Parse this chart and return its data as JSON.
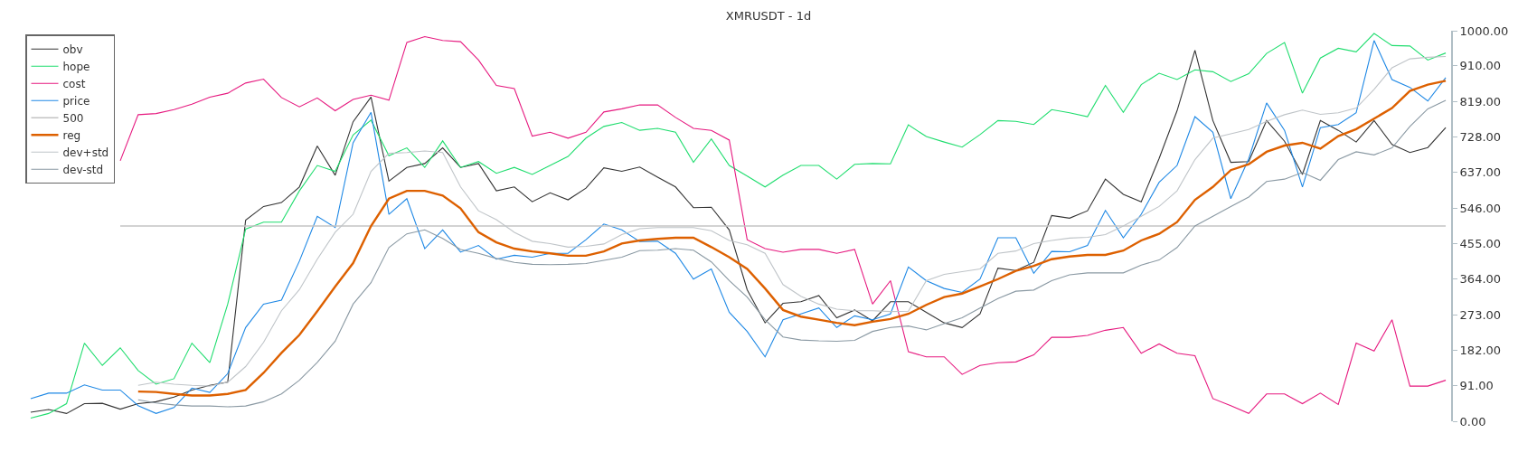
{
  "chart_data": {
    "type": "line",
    "title": "XMRUSDT - 1d",
    "categories": [
      null,
      null,
      null,
      null,
      null,
      null,
      null,
      null,
      null,
      null,
      null,
      null,
      null,
      null,
      null,
      null,
      null,
      null,
      null,
      null,
      null,
      null,
      null,
      null,
      null,
      null,
      null,
      null,
      null,
      null,
      null,
      null,
      null,
      null,
      null,
      null,
      null,
      null,
      null,
      null,
      null,
      null,
      null,
      null,
      null,
      null,
      null,
      null,
      null,
      null,
      null,
      null,
      null,
      null,
      null,
      null,
      null,
      null,
      null,
      null,
      null,
      null,
      null,
      null,
      null,
      null,
      null,
      null,
      null,
      null,
      null,
      null,
      null,
      null,
      null,
      null,
      null,
      null,
      null,
      null
    ],
    "series": [
      {
        "name": "obv",
        "color": "#333333",
        "values": [
          23,
          30,
          20,
          45,
          46,
          31,
          45,
          50,
          62,
          80,
          92,
          100,
          515,
          550,
          560,
          600,
          705,
          630,
          767,
          830,
          615,
          650,
          660,
          700,
          650,
          660,
          590,
          600,
          562,
          585,
          567,
          597,
          649,
          640,
          651,
          625,
          600,
          547,
          548,
          490,
          337,
          252,
          302,
          306,
          322,
          265,
          285,
          257,
          306,
          306,
          279,
          252,
          240,
          275,
          392,
          386,
          407,
          527,
          520,
          539,
          620,
          581,
          562,
          673,
          795,
          950,
          770,
          663,
          665,
          770,
          717,
          632,
          770,
          745,
          715,
          770,
          709,
          688,
          701,
          752
        ]
      },
      {
        "name": "hope",
        "color": "#1fdd6e",
        "values": [
          8,
          20,
          45,
          200,
          143,
          188,
          130,
          95,
          109,
          200,
          150,
          300,
          492,
          510,
          510,
          590,
          655,
          640,
          733,
          771,
          680,
          700,
          650,
          718,
          650,
          665,
          635,
          650,
          632,
          655,
          678,
          725,
          755,
          765,
          745,
          750,
          740,
          663,
          723,
          655,
          628,
          600,
          630,
          655,
          655,
          620,
          658,
          660,
          659,
          759,
          729,
          715,
          702,
          734,
          770,
          768,
          760,
          798,
          790,
          780,
          860,
          791,
          862,
          891,
          875,
          900,
          895,
          870,
          890,
          942,
          970,
          840,
          930,
          955,
          946,
          993,
          962,
          961,
          925,
          943
        ]
      },
      {
        "name": "cost",
        "color": "#e6197f",
        "values": [
          null,
          null,
          null,
          null,
          null,
          667,
          785,
          788,
          798,
          812,
          830,
          840,
          866,
          876,
          829,
          805,
          828,
          795,
          824,
          835,
          822,
          970,
          985,
          975,
          972,
          925,
          860,
          852,
          730,
          740,
          725,
          740,
          792,
          800,
          810,
          810,
          778,
          750,
          745,
          720,
          465,
          442,
          433,
          440,
          440,
          430,
          440,
          300,
          360,
          178,
          165,
          165,
          120,
          143,
          150,
          152,
          170,
          215,
          215,
          220,
          233,
          240,
          174,
          198,
          174,
          168,
          58,
          40,
          20,
          70,
          70,
          45,
          72,
          43,
          200,
          180,
          260,
          90,
          90,
          105
        ]
      },
      {
        "name": "price",
        "color": "#1e88e5",
        "values": [
          58,
          72,
          72,
          93,
          80,
          80,
          40,
          20,
          35,
          85,
          74,
          122,
          240,
          300,
          310,
          410,
          525,
          496,
          713,
          791,
          530,
          570,
          442,
          490,
          433,
          450,
          415,
          425,
          420,
          430,
          430,
          465,
          505,
          490,
          460,
          461,
          430,
          364,
          390,
          279,
          230,
          165,
          260,
          275,
          290,
          240,
          270,
          260,
          275,
          395,
          360,
          340,
          330,
          364,
          470,
          470,
          379,
          435,
          434,
          450,
          540,
          470,
          530,
          612,
          655,
          780,
          740,
          570,
          672,
          815,
          745,
          600,
          752,
          760,
          790,
          975,
          875,
          855,
          820,
          880
        ]
      },
      {
        "name": "500",
        "color": "#c4c4c4",
        "values": [
          null,
          null,
          null,
          null,
          null,
          500,
          500,
          500,
          500,
          500,
          500,
          500,
          500,
          500,
          500,
          500,
          500,
          500,
          500,
          500,
          500,
          500,
          500,
          500,
          500,
          500,
          500,
          500,
          500,
          500,
          500,
          500,
          500,
          500,
          500,
          500,
          500,
          500,
          500,
          500,
          500,
          500,
          500,
          500,
          500,
          500,
          500,
          500,
          500,
          500,
          500,
          500,
          500,
          500,
          500,
          500,
          500,
          500,
          500,
          500,
          500,
          500,
          500,
          500,
          500,
          500,
          500,
          500,
          500,
          500,
          500,
          500,
          500,
          500,
          500,
          500,
          500,
          500,
          500,
          500
        ]
      },
      {
        "name": "reg",
        "color": "#dd6000",
        "values": [
          null,
          null,
          null,
          null,
          null,
          null,
          76,
          75,
          70,
          66,
          66,
          70,
          80,
          124,
          175,
          221,
          282,
          345,
          405,
          500,
          570,
          590,
          590,
          578,
          545,
          484,
          458,
          442,
          435,
          430,
          424,
          424,
          435,
          455,
          463,
          467,
          470,
          470,
          446,
          420,
          390,
          340,
          285,
          268,
          260,
          252,
          246,
          255,
          262,
          275,
          298,
          318,
          327,
          345,
          364,
          385,
          398,
          415,
          422,
          426,
          426,
          437,
          463,
          480,
          510,
          567,
          600,
          643,
          658,
          690,
          706,
          713,
          698,
          730,
          748,
          775,
          802,
          846,
          862,
          872
        ]
      },
      {
        "name": "dev+std",
        "color": "#bfc4c8",
        "values": [
          null,
          null,
          null,
          null,
          null,
          null,
          92,
          100,
          95,
          92,
          90,
          100,
          140,
          202,
          283,
          337,
          415,
          484,
          530,
          640,
          686,
          688,
          692,
          688,
          600,
          539,
          516,
          484,
          461,
          455,
          446,
          448,
          454,
          478,
          493,
          496,
          496,
          496,
          488,
          463,
          452,
          430,
          350,
          320,
          300,
          287,
          283,
          283,
          281,
          282,
          360,
          376,
          383,
          390,
          430,
          436,
          455,
          463,
          469,
          471,
          478,
          500,
          525,
          550,
          590,
          670,
          725,
          736,
          747,
          768,
          785,
          797,
          786,
          790,
          802,
          850,
          905,
          928,
          932,
          934
        ]
      },
      {
        "name": "dev-std",
        "color": "#8a99a3",
        "values": [
          null,
          null,
          null,
          null,
          null,
          null,
          55,
          47,
          42,
          39,
          39,
          37,
          39,
          50,
          70,
          105,
          151,
          205,
          300,
          355,
          445,
          480,
          490,
          468,
          440,
          430,
          417,
          407,
          402,
          401,
          402,
          404,
          412,
          420,
          437,
          438,
          442,
          438,
          408,
          360,
          318,
          260,
          216,
          208,
          206,
          205,
          207,
          230,
          240,
          244,
          234,
          250,
          265,
          290,
          314,
          333,
          336,
          360,
          375,
          380,
          380,
          380,
          400,
          413,
          445,
          500,
          525,
          550,
          574,
          614,
          620,
          637,
          617,
          670,
          690,
          682,
          700,
          755,
          800,
          822
        ]
      }
    ],
    "ylim": [
      0,
      1000
    ],
    "yticks": [
      {
        "value": 0,
        "label": "0.00"
      },
      {
        "value": 91,
        "label": "91.00"
      },
      {
        "value": 182,
        "label": "182.00"
      },
      {
        "value": 273,
        "label": "273.00"
      },
      {
        "value": 364,
        "label": "364.00"
      },
      {
        "value": 455,
        "label": "455.00"
      },
      {
        "value": 546,
        "label": "546.00"
      },
      {
        "value": 637,
        "label": "637.00"
      },
      {
        "value": 728,
        "label": "728.00"
      },
      {
        "value": 819,
        "label": "819.00"
      },
      {
        "value": 910,
        "label": "910.00"
      },
      {
        "value": 1000,
        "label": "1000.00"
      }
    ],
    "tick_labels": "y",
    "legend": "top left",
    "line_style": "solid",
    "marker": "none"
  }
}
